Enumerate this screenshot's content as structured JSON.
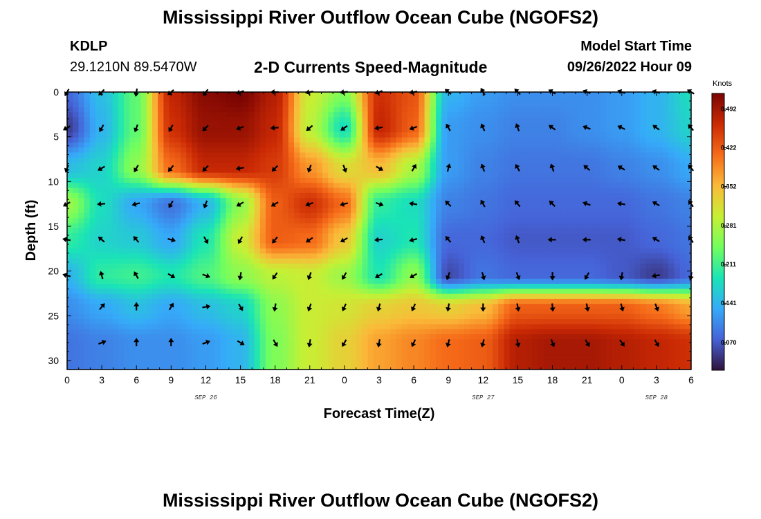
{
  "header": {
    "title": "Mississippi River Outflow Ocean Cube (NGOFS2)",
    "station_id": "KDLP",
    "station_coords": "29.1210N  89.5470W",
    "subtitle": "2-D Currents Speed-Magnitude",
    "model_start_label": "Model Start Time",
    "model_start_value": "09/26/2022 Hour 09"
  },
  "footer": {
    "title": "Mississippi River Outflow Ocean Cube (NGOFS2)"
  },
  "chart_data": {
    "type": "heatmap",
    "title": "2-D Currents Speed-Magnitude",
    "xlabel": "Forecast Time(Z)",
    "ylabel": "Depth (ft)",
    "x_tick_labels": [
      "0",
      "3",
      "6",
      "9",
      "12",
      "15",
      "18",
      "21",
      "0",
      "3",
      "6",
      "9",
      "12",
      "15",
      "18",
      "21",
      "0",
      "3",
      "6"
    ],
    "x_hours_range": [
      0,
      54
    ],
    "date_labels": [
      {
        "text": "SEP 26",
        "hour": 12
      },
      {
        "text": "SEP 27",
        "hour": 36
      },
      {
        "text": "SEP 28",
        "hour": 51
      }
    ],
    "y_ticks": [
      0,
      5,
      10,
      15,
      20,
      25,
      30
    ],
    "y_tick_labels": [
      "0",
      "5",
      "10",
      "15",
      "20",
      "25",
      "30"
    ],
    "ylim": [
      0,
      31
    ],
    "y_inverted": true,
    "colorbar": {
      "unit": "Knots",
      "tick_values": [
        0.07,
        0.141,
        0.211,
        0.281,
        0.352,
        0.422,
        0.492
      ],
      "tick_labels": [
        "0.070",
        "0.141",
        "0.211",
        "0.281",
        "0.352",
        "0.422",
        "0.492"
      ],
      "range": [
        0.02,
        0.52
      ],
      "colors": [
        "#30123b",
        "#4662d7",
        "#36aaf9",
        "#1ae4b6",
        "#72fe5e",
        "#c7ef34",
        "#faba39",
        "#f66b19",
        "#cb2a04",
        "#7a0403"
      ]
    },
    "depth_levels": [
      0,
      4,
      8.5,
      12.5,
      16.5,
      20.5,
      24,
      28
    ],
    "time_columns_hours": [
      0,
      3,
      6,
      9,
      12,
      15,
      18,
      21,
      24,
      27,
      30,
      33,
      36,
      39,
      42,
      45,
      48,
      51,
      54
    ],
    "speed_knots": [
      [
        0.08,
        0.15,
        0.23,
        0.47,
        0.51,
        0.52,
        0.48,
        0.3,
        0.25,
        0.46,
        0.43,
        0.14,
        0.12,
        0.11,
        0.11,
        0.11,
        0.12,
        0.14,
        0.18
      ],
      [
        0.05,
        0.14,
        0.23,
        0.46,
        0.5,
        0.5,
        0.47,
        0.29,
        0.18,
        0.47,
        0.42,
        0.12,
        0.11,
        0.1,
        0.1,
        0.11,
        0.12,
        0.14,
        0.17
      ],
      [
        0.15,
        0.17,
        0.26,
        0.41,
        0.47,
        0.47,
        0.45,
        0.38,
        0.32,
        0.35,
        0.28,
        0.12,
        0.1,
        0.09,
        0.09,
        0.09,
        0.1,
        0.11,
        0.13
      ],
      [
        0.27,
        0.18,
        0.13,
        0.09,
        0.14,
        0.26,
        0.42,
        0.46,
        0.41,
        0.2,
        0.18,
        0.1,
        0.09,
        0.08,
        0.08,
        0.08,
        0.08,
        0.09,
        0.1
      ],
      [
        0.2,
        0.17,
        0.16,
        0.13,
        0.19,
        0.3,
        0.42,
        0.41,
        0.34,
        0.17,
        0.19,
        0.08,
        0.08,
        0.07,
        0.07,
        0.07,
        0.07,
        0.08,
        0.09
      ],
      [
        0.14,
        0.2,
        0.21,
        0.19,
        0.22,
        0.26,
        0.29,
        0.3,
        0.27,
        0.19,
        0.26,
        0.06,
        0.09,
        0.08,
        0.08,
        0.08,
        0.07,
        0.05,
        0.08
      ],
      [
        0.11,
        0.13,
        0.15,
        0.13,
        0.15,
        0.17,
        0.26,
        0.3,
        0.31,
        0.33,
        0.34,
        0.33,
        0.35,
        0.42,
        0.42,
        0.42,
        0.42,
        0.4,
        0.37
      ],
      [
        0.09,
        0.1,
        0.11,
        0.11,
        0.12,
        0.14,
        0.25,
        0.3,
        0.33,
        0.37,
        0.39,
        0.41,
        0.42,
        0.48,
        0.49,
        0.49,
        0.48,
        0.47,
        0.46
      ]
    ],
    "arrows": [
      {
        "t": 0,
        "d": 0,
        "angle": 120
      },
      {
        "t": 3,
        "d": 0,
        "angle": 135
      },
      {
        "t": 6,
        "d": 0,
        "angle": 100
      },
      {
        "t": 9,
        "d": 0,
        "angle": 140
      },
      {
        "t": 12,
        "d": 0,
        "angle": 130
      },
      {
        "t": 15,
        "d": 0,
        "angle": 160
      },
      {
        "t": 18,
        "d": 0,
        "angle": 180
      },
      {
        "t": 21,
        "d": 0,
        "angle": 170
      },
      {
        "t": 24,
        "d": 0,
        "angle": 175
      },
      {
        "t": 27,
        "d": 0,
        "angle": 160
      },
      {
        "t": 30,
        "d": 0,
        "angle": 170
      },
      {
        "t": 33,
        "d": 0,
        "angle": 220
      },
      {
        "t": 36,
        "d": 0,
        "angle": 240
      },
      {
        "t": 39,
        "d": 0,
        "angle": 225
      },
      {
        "t": 42,
        "d": 0,
        "angle": 210
      },
      {
        "t": 45,
        "d": 0,
        "angle": 200
      },
      {
        "t": 48,
        "d": 0,
        "angle": 200
      },
      {
        "t": 51,
        "d": 0,
        "angle": 195
      },
      {
        "t": 54,
        "d": 0,
        "angle": 210
      },
      {
        "t": 0,
        "d": 4,
        "angle": 150
      },
      {
        "t": 3,
        "d": 4,
        "angle": 120
      },
      {
        "t": 6,
        "d": 4,
        "angle": 110
      },
      {
        "t": 9,
        "d": 4,
        "angle": 120
      },
      {
        "t": 12,
        "d": 4,
        "angle": 135
      },
      {
        "t": 15,
        "d": 4,
        "angle": 160
      },
      {
        "t": 18,
        "d": 4,
        "angle": 175
      },
      {
        "t": 21,
        "d": 4,
        "angle": 140
      },
      {
        "t": 24,
        "d": 4,
        "angle": 145
      },
      {
        "t": 27,
        "d": 4,
        "angle": 170
      },
      {
        "t": 30,
        "d": 4,
        "angle": 160
      },
      {
        "t": 33,
        "d": 4,
        "angle": 240
      },
      {
        "t": 36,
        "d": 4,
        "angle": 245
      },
      {
        "t": 39,
        "d": 4,
        "angle": 250
      },
      {
        "t": 42,
        "d": 4,
        "angle": 215
      },
      {
        "t": 45,
        "d": 4,
        "angle": 200
      },
      {
        "t": 48,
        "d": 4,
        "angle": 205
      },
      {
        "t": 51,
        "d": 4,
        "angle": 215
      },
      {
        "t": 54,
        "d": 4,
        "angle": 230
      },
      {
        "t": 0,
        "d": 8.5,
        "angle": 110
      },
      {
        "t": 3,
        "d": 8.5,
        "angle": 150
      },
      {
        "t": 6,
        "d": 8.5,
        "angle": 120
      },
      {
        "t": 9,
        "d": 8.5,
        "angle": 130
      },
      {
        "t": 12,
        "d": 8.5,
        "angle": 135
      },
      {
        "t": 15,
        "d": 8.5,
        "angle": 170
      },
      {
        "t": 18,
        "d": 8.5,
        "angle": 135
      },
      {
        "t": 21,
        "d": 8.5,
        "angle": 110
      },
      {
        "t": 24,
        "d": 8.5,
        "angle": 70
      },
      {
        "t": 27,
        "d": 8.5,
        "angle": 30
      },
      {
        "t": 30,
        "d": 8.5,
        "angle": 300
      },
      {
        "t": 33,
        "d": 8.5,
        "angle": 285
      },
      {
        "t": 36,
        "d": 8.5,
        "angle": 250
      },
      {
        "t": 39,
        "d": 8.5,
        "angle": 240
      },
      {
        "t": 42,
        "d": 8.5,
        "angle": 250
      },
      {
        "t": 45,
        "d": 8.5,
        "angle": 220
      },
      {
        "t": 48,
        "d": 8.5,
        "angle": 210
      },
      {
        "t": 51,
        "d": 8.5,
        "angle": 215
      },
      {
        "t": 54,
        "d": 8.5,
        "angle": 230
      },
      {
        "t": 0,
        "d": 12.5,
        "angle": 150
      },
      {
        "t": 3,
        "d": 12.5,
        "angle": 175
      },
      {
        "t": 6,
        "d": 12.5,
        "angle": 165
      },
      {
        "t": 9,
        "d": 12.5,
        "angle": 120
      },
      {
        "t": 12,
        "d": 12.5,
        "angle": 110
      },
      {
        "t": 15,
        "d": 12.5,
        "angle": 150
      },
      {
        "t": 18,
        "d": 12.5,
        "angle": 150
      },
      {
        "t": 21,
        "d": 12.5,
        "angle": 160
      },
      {
        "t": 24,
        "d": 12.5,
        "angle": 165
      },
      {
        "t": 27,
        "d": 12.5,
        "angle": 20
      },
      {
        "t": 30,
        "d": 12.5,
        "angle": 190
      },
      {
        "t": 33,
        "d": 12.5,
        "angle": 225
      },
      {
        "t": 36,
        "d": 12.5,
        "angle": 240
      },
      {
        "t": 39,
        "d": 12.5,
        "angle": 230
      },
      {
        "t": 42,
        "d": 12.5,
        "angle": 225
      },
      {
        "t": 45,
        "d": 12.5,
        "angle": 200
      },
      {
        "t": 48,
        "d": 12.5,
        "angle": 190
      },
      {
        "t": 51,
        "d": 12.5,
        "angle": 210
      },
      {
        "t": 54,
        "d": 12.5,
        "angle": 235
      },
      {
        "t": 0,
        "d": 16.5,
        "angle": 190
      },
      {
        "t": 3,
        "d": 16.5,
        "angle": 220
      },
      {
        "t": 6,
        "d": 16.5,
        "angle": 230
      },
      {
        "t": 9,
        "d": 16.5,
        "angle": 15
      },
      {
        "t": 12,
        "d": 16.5,
        "angle": 60
      },
      {
        "t": 15,
        "d": 16.5,
        "angle": 120
      },
      {
        "t": 18,
        "d": 16.5,
        "angle": 130
      },
      {
        "t": 21,
        "d": 16.5,
        "angle": 145
      },
      {
        "t": 24,
        "d": 16.5,
        "angle": 150
      },
      {
        "t": 27,
        "d": 16.5,
        "angle": 175
      },
      {
        "t": 30,
        "d": 16.5,
        "angle": 165
      },
      {
        "t": 33,
        "d": 16.5,
        "angle": 230
      },
      {
        "t": 36,
        "d": 16.5,
        "angle": 245
      },
      {
        "t": 39,
        "d": 16.5,
        "angle": 250
      },
      {
        "t": 42,
        "d": 16.5,
        "angle": 180
      },
      {
        "t": 45,
        "d": 16.5,
        "angle": 180
      },
      {
        "t": 48,
        "d": 16.5,
        "angle": 190
      },
      {
        "t": 51,
        "d": 16.5,
        "angle": 210
      },
      {
        "t": 54,
        "d": 16.5,
        "angle": 235
      },
      {
        "t": 0,
        "d": 20.5,
        "angle": 195
      },
      {
        "t": 3,
        "d": 20.5,
        "angle": 255
      },
      {
        "t": 6,
        "d": 20.5,
        "angle": 240
      },
      {
        "t": 9,
        "d": 20.5,
        "angle": 30
      },
      {
        "t": 12,
        "d": 20.5,
        "angle": 20
      },
      {
        "t": 15,
        "d": 20.5,
        "angle": 100
      },
      {
        "t": 18,
        "d": 20.5,
        "angle": 125
      },
      {
        "t": 21,
        "d": 20.5,
        "angle": 110
      },
      {
        "t": 24,
        "d": 20.5,
        "angle": 120
      },
      {
        "t": 27,
        "d": 20.5,
        "angle": 150
      },
      {
        "t": 30,
        "d": 20.5,
        "angle": 150
      },
      {
        "t": 33,
        "d": 20.5,
        "angle": 110
      },
      {
        "t": 36,
        "d": 20.5,
        "angle": 75
      },
      {
        "t": 39,
        "d": 20.5,
        "angle": 70
      },
      {
        "t": 42,
        "d": 20.5,
        "angle": 90
      },
      {
        "t": 45,
        "d": 20.5,
        "angle": 120
      },
      {
        "t": 48,
        "d": 20.5,
        "angle": 100
      },
      {
        "t": 51,
        "d": 20.5,
        "angle": 170
      },
      {
        "t": 54,
        "d": 20.5,
        "angle": 100
      },
      {
        "t": 3,
        "d": 24,
        "angle": 310
      },
      {
        "t": 6,
        "d": 24,
        "angle": 270
      },
      {
        "t": 9,
        "d": 24,
        "angle": 300
      },
      {
        "t": 12,
        "d": 24,
        "angle": 350
      },
      {
        "t": 15,
        "d": 24,
        "angle": 60
      },
      {
        "t": 18,
        "d": 24,
        "angle": 100
      },
      {
        "t": 21,
        "d": 24,
        "angle": 110
      },
      {
        "t": 24,
        "d": 24,
        "angle": 115
      },
      {
        "t": 27,
        "d": 24,
        "angle": 105
      },
      {
        "t": 30,
        "d": 24,
        "angle": 115
      },
      {
        "t": 33,
        "d": 24,
        "angle": 100
      },
      {
        "t": 36,
        "d": 24,
        "angle": 90
      },
      {
        "t": 39,
        "d": 24,
        "angle": 80
      },
      {
        "t": 42,
        "d": 24,
        "angle": 85
      },
      {
        "t": 45,
        "d": 24,
        "angle": 80
      },
      {
        "t": 48,
        "d": 24,
        "angle": 75
      },
      {
        "t": 51,
        "d": 24,
        "angle": 70
      },
      {
        "t": 3,
        "d": 28,
        "angle": 340
      },
      {
        "t": 6,
        "d": 28,
        "angle": 270
      },
      {
        "t": 9,
        "d": 28,
        "angle": 270
      },
      {
        "t": 12,
        "d": 28,
        "angle": 340
      },
      {
        "t": 15,
        "d": 28,
        "angle": 30
      },
      {
        "t": 18,
        "d": 28,
        "angle": 60
      },
      {
        "t": 21,
        "d": 28,
        "angle": 100
      },
      {
        "t": 24,
        "d": 28,
        "angle": 120
      },
      {
        "t": 27,
        "d": 28,
        "angle": 100
      },
      {
        "t": 30,
        "d": 28,
        "angle": 115
      },
      {
        "t": 33,
        "d": 28,
        "angle": 105
      },
      {
        "t": 36,
        "d": 28,
        "angle": 105
      },
      {
        "t": 39,
        "d": 28,
        "angle": 80
      },
      {
        "t": 42,
        "d": 28,
        "angle": 70
      },
      {
        "t": 45,
        "d": 28,
        "angle": 60
      },
      {
        "t": 48,
        "d": 28,
        "angle": 55
      },
      {
        "t": 51,
        "d": 28,
        "angle": 60
      }
    ]
  }
}
